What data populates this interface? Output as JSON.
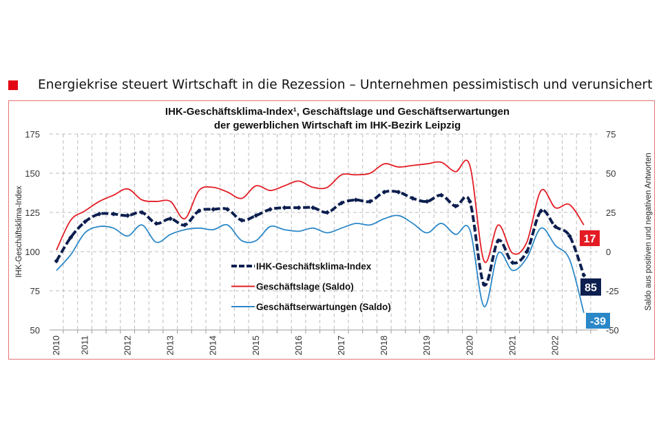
{
  "headline": "Energiekrise steuert Wirtschaft in die Rezession – Unternehmen pessimistisch und verunsichert",
  "colors": {
    "accent": "#e30613",
    "index": "#0d1f4f",
    "lage": "#e31b23",
    "erwartungen": "#2a87c8",
    "frame": "#e57373"
  },
  "chart_data": {
    "type": "line",
    "title_line1": "IHK-Geschäftsklima-Index¹, Geschäftslage und Geschäftserwartungen",
    "title_line2": "der gewerblichen Wirtschaft im IHK-Bezirk Leipzig",
    "ylabel_left": "IHK-Geschäftsklima-Index",
    "ylabel_right": "Saldo aus positiven und negativen Antworten",
    "ylim_left": [
      50,
      175
    ],
    "ylim_right": [
      -50,
      75
    ],
    "yticks_left": [
      "175",
      "150",
      "125",
      "100",
      "75",
      "50"
    ],
    "yticks_right": [
      "75",
      "50",
      "25",
      "0",
      "-25",
      "-50"
    ],
    "grid": true,
    "legend_placement": "center",
    "x_labels": [
      "2010",
      "",
      "2011",
      "",
      "",
      "2012",
      "",
      "",
      "2013",
      "",
      "",
      "2014",
      "",
      "",
      "2015",
      "",
      "",
      "2016",
      "",
      "",
      "2017",
      "",
      "",
      "2018",
      "",
      "",
      "2019",
      "",
      "",
      "2020",
      "",
      "",
      "2021",
      "",
      "",
      "2022",
      "",
      ""
    ],
    "series": [
      {
        "name": "IHK-Geschäftsklima-Index",
        "axis": "left",
        "color": "#0d1f4f",
        "style": "dash-dot-markers",
        "end_label": "85",
        "values": [
          94,
          109,
          119,
          124,
          124,
          123,
          125,
          118,
          121,
          117,
          126,
          127,
          127,
          120,
          123,
          127,
          128,
          128,
          128,
          125,
          131,
          133,
          132,
          138,
          138,
          134,
          132,
          136,
          129,
          132,
          79,
          107,
          93,
          100,
          126,
          116,
          110,
          85
        ]
      },
      {
        "name": "Geschäftslage (Saldo)",
        "axis": "right",
        "color": "#e31b23",
        "style": "solid",
        "end_label": "17",
        "values": [
          1,
          20,
          26,
          32,
          36,
          40,
          33,
          32,
          32,
          21,
          39,
          41,
          38,
          34,
          42,
          39,
          42,
          45,
          41,
          41,
          49,
          49,
          50,
          56,
          54,
          55,
          56,
          57,
          51,
          55,
          -6,
          17,
          -1,
          6,
          39,
          28,
          30,
          17
        ]
      },
      {
        "name": "Geschäftserwartungen (Saldo)",
        "axis": "right",
        "color": "#2a87c8",
        "style": "solid",
        "end_label": "-39",
        "values": [
          -12,
          -2,
          12,
          16,
          15,
          10,
          17,
          6,
          11,
          14,
          15,
          14,
          17,
          7,
          7,
          16,
          14,
          13,
          15,
          12,
          15,
          18,
          17,
          21,
          23,
          18,
          12,
          18,
          11,
          14,
          -35,
          -1,
          -12,
          -4,
          15,
          4,
          -5,
          -39
        ]
      }
    ]
  }
}
